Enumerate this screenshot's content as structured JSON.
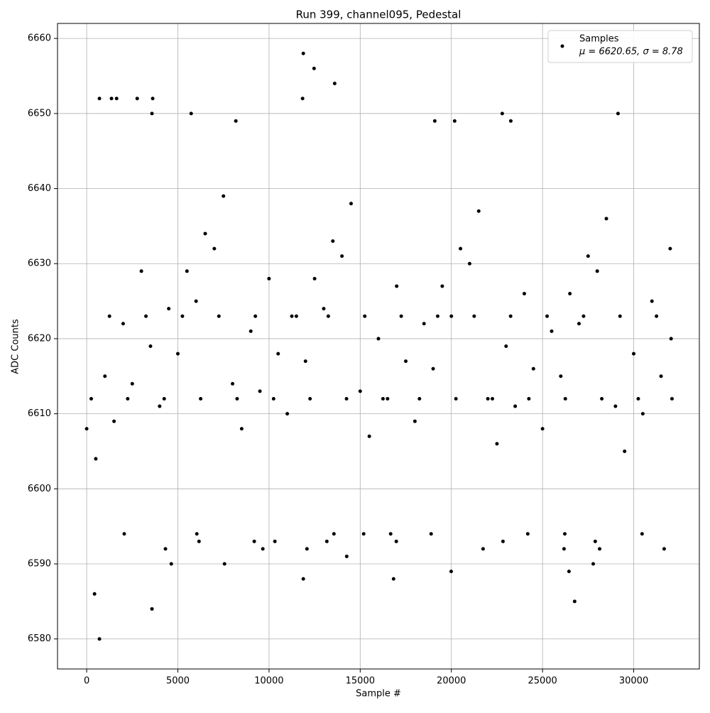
{
  "chart_data": {
    "type": "scatter",
    "title": "Run 399, channel095, Pedestal",
    "x_label": "Sample #",
    "y_label": "ADC Counts",
    "series": [
      {
        "name": "Samples",
        "color": "#000000",
        "x": [
          0,
          250,
          500,
          1000,
          1250,
          1500,
          2000,
          2250,
          2500,
          3000,
          3250,
          3500,
          4000,
          4250,
          4500,
          5000,
          5250,
          5500,
          6000,
          6250,
          6500,
          7000,
          7250,
          7500,
          8000,
          8250,
          8500,
          9000,
          9250,
          9500,
          10000,
          10250,
          10500,
          11000,
          11250,
          11500,
          12000,
          12250,
          12500,
          13000,
          13250,
          13500,
          14000,
          14250,
          14500,
          15000,
          15250,
          15500,
          16000,
          16250,
          16500,
          17000,
          17250,
          17500,
          18000,
          18250,
          18500,
          19000,
          19250,
          19500,
          20000,
          20250,
          20500,
          21000,
          21250,
          21500,
          22000,
          22250,
          22500,
          23000,
          23250,
          23500,
          24000,
          24250,
          24500,
          25000,
          25250,
          25500,
          26000,
          26250,
          26500,
          27000,
          27250,
          27500,
          28000,
          28250,
          28500,
          29000,
          29250,
          29500,
          30000,
          30250,
          30500,
          31000,
          31250,
          31500,
          32000,
          32100,
          32050,
          700,
          430,
          3580,
          11880,
          16830,
          19990,
          26450,
          26760,
          27780,
          7560,
          4640,
          11880,
          12470,
          13600,
          11840,
          700,
          1360,
          1640,
          2770,
          3620,
          3580,
          5730,
          22790,
          29140,
          8180,
          19090,
          20180,
          23260,
          14260,
          12080,
          9660,
          21740,
          26180,
          28130,
          31670,
          4320,
          16980,
          13170,
          10320,
          9190,
          22830,
          27890,
          6160,
          2060,
          6040,
          13560,
          15190,
          16670,
          18890,
          24190,
          26220,
          30460
        ],
        "values": [
          6608,
          6612,
          6604,
          6615,
          6623,
          6609,
          6622,
          6612,
          6614,
          6629,
          6623,
          6619,
          6611,
          6612,
          6624,
          6618,
          6623,
          6629,
          6625,
          6612,
          6634,
          6632,
          6623,
          6639,
          6614,
          6612,
          6608,
          6621,
          6623,
          6613,
          6628,
          6612,
          6618,
          6610,
          6623,
          6623,
          6617,
          6612,
          6628,
          6624,
          6623,
          6633,
          6631,
          6612,
          6638,
          6613,
          6623,
          6607,
          6620,
          6612,
          6612,
          6627,
          6623,
          6617,
          6609,
          6612,
          6622,
          6616,
          6623,
          6627,
          6623,
          6612,
          6632,
          6630,
          6623,
          6637,
          6612,
          6612,
          6606,
          6619,
          6623,
          6611,
          6626,
          6612,
          6616,
          6608,
          6623,
          6621,
          6615,
          6612,
          6626,
          6622,
          6623,
          6631,
          6629,
          6612,
          6636,
          6611,
          6623,
          6605,
          6618,
          6612,
          6610,
          6625,
          6623,
          6615,
          6632,
          6612,
          6620,
          6580,
          6586,
          6584,
          6588,
          6588,
          6589,
          6589,
          6585,
          6590,
          6590,
          6590,
          6658,
          6656,
          6654,
          6652,
          6652,
          6652,
          6652,
          6652,
          6652,
          6650,
          6650,
          6650,
          6650,
          6649,
          6649,
          6649,
          6649,
          6591,
          6592,
          6592,
          6592,
          6592,
          6592,
          6592,
          6592,
          6593,
          6593,
          6593,
          6593,
          6593,
          6593,
          6593,
          6594,
          6594,
          6594,
          6594,
          6594,
          6594,
          6594,
          6594,
          6594
        ]
      }
    ],
    "legend_note": "μ = 6620.65, σ = 8.78",
    "xlim": [
      -1600,
      33600
    ],
    "ylim": [
      6576,
      6662
    ],
    "xticks": [
      0,
      5000,
      10000,
      15000,
      20000,
      25000,
      30000
    ],
    "yticks": [
      6580,
      6590,
      6600,
      6610,
      6620,
      6630,
      6640,
      6650,
      6660
    ],
    "grid": true,
    "legend": "upper right"
  }
}
